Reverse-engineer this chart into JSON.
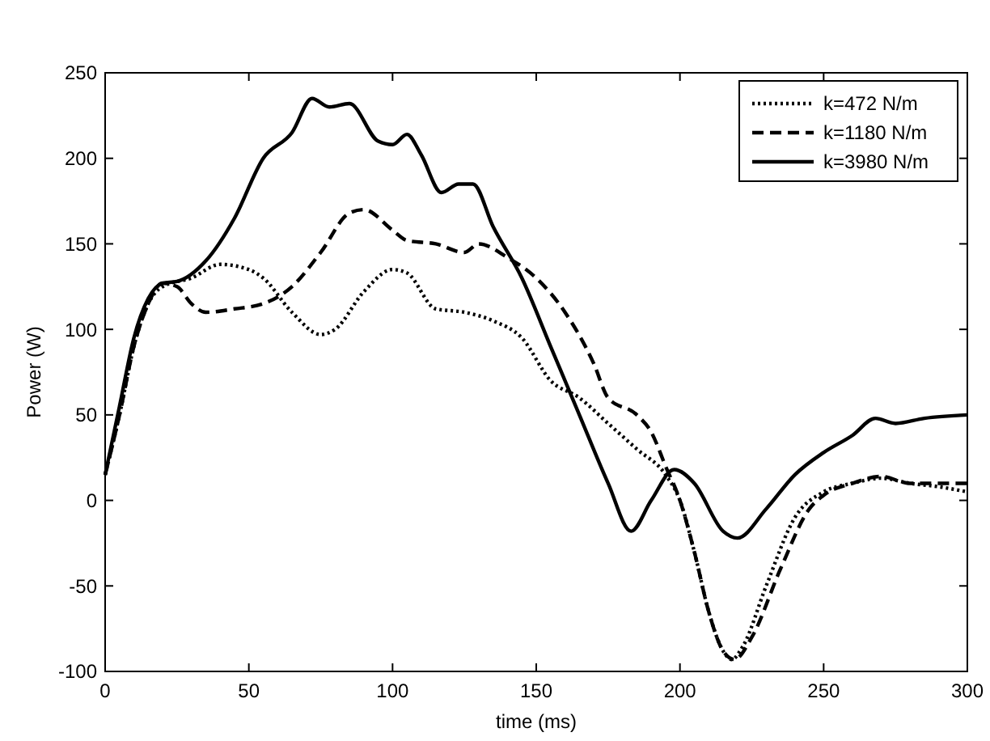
{
  "chart_data": {
    "type": "line",
    "xlabel": "time (ms)",
    "ylabel": "Power (W)",
    "xlim": [
      0,
      300
    ],
    "ylim": [
      -100,
      250
    ],
    "xticks": [
      0,
      50,
      100,
      150,
      200,
      250,
      300
    ],
    "yticks": [
      -100,
      -50,
      0,
      50,
      100,
      150,
      200,
      250
    ],
    "legend": "top right",
    "series": [
      {
        "name": "k=472 N/m",
        "color": "#000000",
        "line_style": "dotted",
        "x": [
          0,
          5,
          10,
          15,
          20,
          30,
          40,
          50,
          55,
          65,
          75,
          80,
          90,
          100,
          105,
          115,
          125,
          135,
          145,
          155,
          165,
          175,
          185,
          195,
          200,
          205,
          210,
          215,
          218,
          222,
          230,
          240,
          250,
          260,
          270,
          280,
          290,
          300
        ],
        "values": [
          15,
          50,
          90,
          115,
          125,
          130,
          138,
          135,
          130,
          110,
          97,
          100,
          122,
          135,
          133,
          112,
          110,
          105,
          95,
          70,
          60,
          45,
          30,
          15,
          0,
          -30,
          -65,
          -88,
          -93,
          -85,
          -50,
          -10,
          5,
          10,
          13,
          10,
          8,
          5
        ]
      },
      {
        "name": "k=1180 N/m",
        "color": "#000000",
        "line_style": "dashed",
        "x": [
          0,
          5,
          10,
          15,
          20,
          25,
          30,
          35,
          45,
          55,
          65,
          75,
          85,
          90,
          100,
          105,
          115,
          125,
          130,
          140,
          150,
          160,
          170,
          175,
          185,
          190,
          195,
          200,
          205,
          210,
          215,
          219,
          225,
          235,
          245,
          250,
          260,
          270,
          280,
          290,
          300
        ],
        "values": [
          15,
          50,
          90,
          115,
          127,
          125,
          115,
          110,
          112,
          115,
          125,
          145,
          168,
          170,
          158,
          152,
          150,
          145,
          150,
          142,
          130,
          110,
          80,
          60,
          50,
          40,
          20,
          0,
          -30,
          -65,
          -88,
          -93,
          -80,
          -40,
          -5,
          3,
          10,
          14,
          10,
          10,
          10
        ]
      },
      {
        "name": "k=3980 N/m",
        "color": "#000000",
        "line_style": "solid",
        "x": [
          0,
          5,
          10,
          15,
          20,
          25,
          35,
          45,
          55,
          65,
          72,
          78,
          85,
          95,
          100,
          105,
          110,
          117,
          123,
          128,
          135,
          145,
          155,
          165,
          175,
          183,
          190,
          198,
          205,
          215,
          220,
          230,
          240,
          250,
          260,
          268,
          275,
          285,
          300
        ],
        "values": [
          15,
          55,
          95,
          118,
          127,
          128,
          140,
          165,
          200,
          215,
          235,
          230,
          232,
          210,
          208,
          214,
          202,
          180,
          185,
          185,
          160,
          130,
          90,
          50,
          10,
          -18,
          0,
          18,
          10,
          -18,
          -22,
          -5,
          15,
          28,
          38,
          48,
          45,
          48,
          50
        ]
      }
    ]
  }
}
